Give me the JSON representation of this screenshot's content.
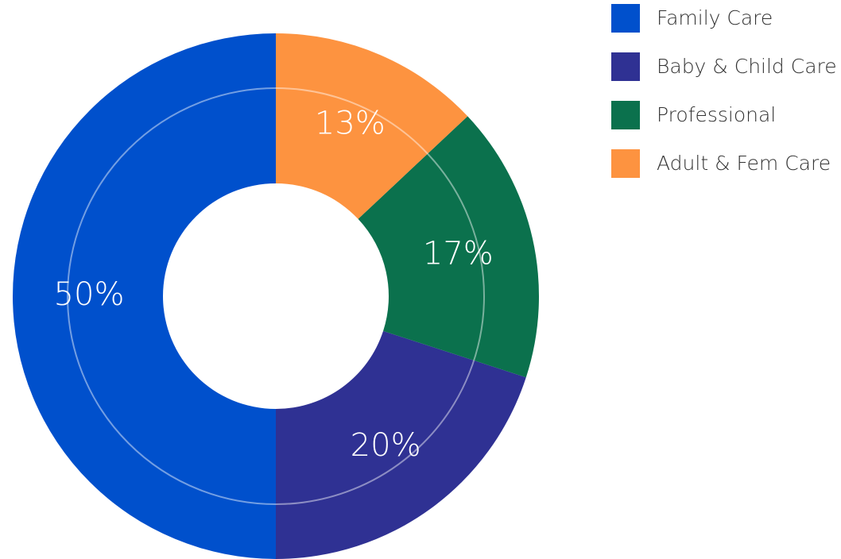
{
  "chart_data": {
    "type": "donut",
    "categories": [
      "Family Care",
      "Baby & Child Care",
      "Professional",
      "Adult & Fem Care"
    ],
    "values": [
      50,
      20,
      17,
      13
    ],
    "value_labels": [
      "50%",
      "20%",
      "17%",
      "13%"
    ],
    "colors": [
      "#0050cc",
      "#2f3193",
      "#0b714d",
      "#fd9340"
    ],
    "legend": "top-right"
  }
}
